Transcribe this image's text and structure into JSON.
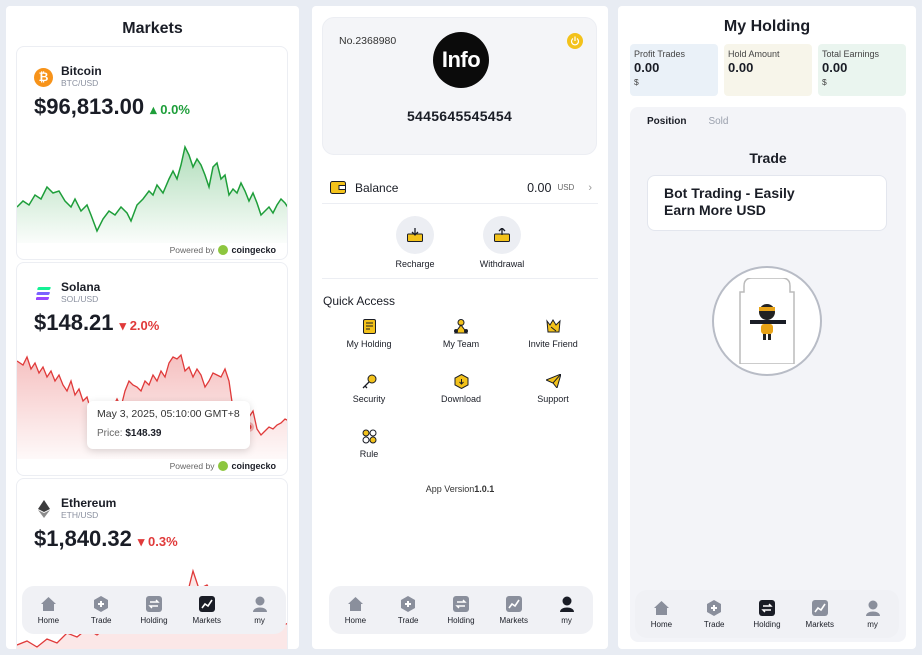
{
  "markets": {
    "title": "Markets",
    "coins": [
      {
        "name": "Bitcoin",
        "pair": "BTC/USD",
        "price": "$96,813.00",
        "change": "0.0%",
        "direction": "up",
        "icon": "bitcoin-icon",
        "icon_color": "#f7931a",
        "chart_color": "#1e9e3a"
      },
      {
        "name": "Solana",
        "pair": "SOL/USD",
        "price": "$148.21",
        "change": "2.0%",
        "direction": "down",
        "icon": "solana-icon",
        "icon_color": "#9945ff",
        "chart_color": "#e03a3a"
      },
      {
        "name": "Ethereum",
        "pair": "ETH/USD",
        "price": "$1,840.32",
        "change": "0.3%",
        "direction": "down",
        "icon": "ethereum-icon",
        "icon_color": "#627eea",
        "chart_color": "#e03a3a"
      }
    ],
    "powered_by": "Powered by",
    "powered_brand": "coingecko",
    "tooltip": {
      "date": "May 3, 2025, 05:10:00 GMT+8",
      "price_label": "Price:",
      "price_value": "$148.39"
    }
  },
  "nav": {
    "home": "Home",
    "trade": "Trade",
    "holding": "Holding",
    "markets": "Markets",
    "my": "my"
  },
  "profile": {
    "account_no": "No.2368980",
    "logo_text": "Info",
    "account_id": "5445645545454",
    "balance_label": "Balance",
    "balance_value": "0.00",
    "balance_currency": "USD",
    "recharge": "Recharge",
    "withdrawal": "Withdrawal",
    "quick_access_title": "Quick Access",
    "quick_access": [
      {
        "label": "My Holding",
        "icon": "document-icon"
      },
      {
        "label": "My Team",
        "icon": "team-icon"
      },
      {
        "label": "Invite Friend",
        "icon": "invite-icon"
      },
      {
        "label": "Security",
        "icon": "key-icon"
      },
      {
        "label": "Download",
        "icon": "download-box-icon"
      },
      {
        "label": "Support",
        "icon": "send-icon"
      },
      {
        "label": "Rule",
        "icon": "rule-icon"
      }
    ],
    "app_version_label": "App Version",
    "app_version": "1.0.1"
  },
  "holding": {
    "title": "My Holding",
    "stats": [
      {
        "label": "Profit Trades",
        "value": "0.00",
        "currency": "$",
        "bg": "#eaf1f8"
      },
      {
        "label": "Hold Amount",
        "value": "0.00",
        "currency": "",
        "bg": "#f7f5ea"
      },
      {
        "label": "Total Earnings",
        "value": "0.00",
        "currency": "$",
        "bg": "#eaf5ef"
      }
    ],
    "tab_position": "Position",
    "tab_sold": "Sold",
    "trade_title": "Trade",
    "bot_line1": "Bot Trading - Easily",
    "bot_line2": "Earn More USD"
  }
}
